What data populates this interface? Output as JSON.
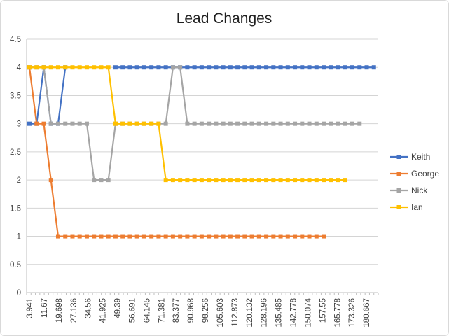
{
  "chart_data": {
    "type": "line",
    "title": "Lead Changes",
    "xlabel": "",
    "ylabel": "",
    "ylim": [
      0,
      4.5
    ],
    "yticks": [
      "0",
      "0.5",
      "1",
      "1.5",
      "2",
      "2.5",
      "3",
      "3.5",
      "4",
      "4.5"
    ],
    "x_tick_labels": [
      "3.941",
      "11.67",
      "19.698",
      "27.136",
      "34.56",
      "41.925",
      "49.39",
      "56.691",
      "64.145",
      "71.381",
      "83.377",
      "90.968",
      "98.256",
      "105.603",
      "112.873",
      "120.132",
      "128.196",
      "135.485",
      "142.778",
      "150.074",
      "157.55",
      "165.778",
      "173.326",
      "180.667"
    ],
    "grid": true,
    "legend": "right",
    "series": [
      {
        "name": "Keith",
        "color": "#4472C4",
        "values": [
          3,
          3,
          4,
          3,
          3,
          4,
          null,
          null,
          null,
          null,
          null,
          null,
          4,
          4,
          4,
          4,
          4,
          4,
          4,
          4,
          4,
          4,
          4,
          4,
          4,
          4,
          4,
          4,
          4,
          4,
          4,
          4,
          4,
          4,
          4,
          4,
          4,
          4,
          4,
          4,
          4,
          4,
          4,
          4,
          4,
          4,
          4,
          4,
          4
        ]
      },
      {
        "name": "George",
        "color": "#ED7D31",
        "values": [
          4,
          3,
          3,
          2,
          1,
          1,
          1,
          1,
          1,
          1,
          1,
          1,
          1,
          1,
          1,
          1,
          1,
          1,
          1,
          1,
          1,
          1,
          1,
          1,
          1,
          1,
          1,
          1,
          1,
          1,
          1,
          1,
          1,
          1,
          1,
          1,
          1,
          1,
          1,
          1,
          1,
          1
        ]
      },
      {
        "name": "Nick",
        "color": "#A5A5A5",
        "values": [
          4,
          4,
          4,
          3,
          3,
          3,
          3,
          3,
          3,
          2,
          2,
          2,
          3,
          3,
          3,
          3,
          3,
          3,
          3,
          3,
          4,
          4,
          3,
          3,
          3,
          3,
          3,
          3,
          3,
          3,
          3,
          3,
          3,
          3,
          3,
          3,
          3,
          3,
          3,
          3,
          3,
          3,
          3,
          3,
          3,
          3,
          3
        ]
      },
      {
        "name": "Ian",
        "color": "#FFC000",
        "values": [
          4,
          4,
          4,
          4,
          4,
          4,
          4,
          4,
          4,
          4,
          4,
          4,
          3,
          3,
          3,
          3,
          3,
          3,
          3,
          2,
          2,
          2,
          2,
          2,
          2,
          2,
          2,
          2,
          2,
          2,
          2,
          2,
          2,
          2,
          2,
          2,
          2,
          2,
          2,
          2,
          2,
          2,
          2,
          2,
          2
        ]
      }
    ]
  }
}
